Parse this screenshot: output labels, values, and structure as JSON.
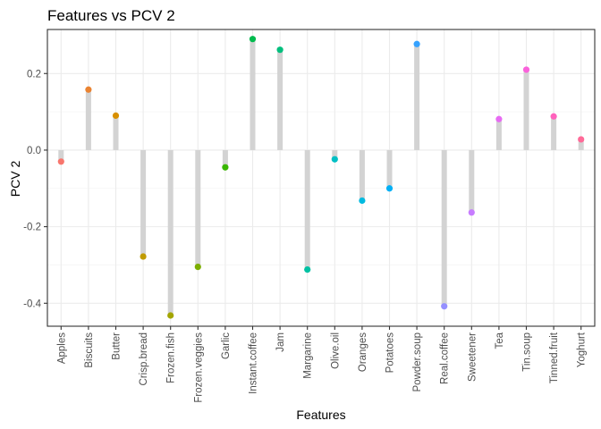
{
  "chart_data": {
    "type": "lollipop",
    "title": "Features vs PCV 2",
    "xlabel": "Features",
    "ylabel": "PCV 2",
    "ylim": [
      -0.46,
      0.315
    ],
    "y_ticks": [
      -0.4,
      -0.2,
      0.0,
      0.2
    ],
    "y_tick_labels": [
      "-0.4",
      "-0.2",
      "0.0",
      "0.2"
    ],
    "grid": true,
    "legend": "none",
    "categories": [
      "Apples",
      "Biscuits",
      "Butter",
      "Crisp.bread",
      "Frozen.fish",
      "Frozen.veggies",
      "Garlic",
      "Instant.coffee",
      "Jam",
      "Margarine",
      "Olive.oil",
      "Oranges",
      "Potatoes",
      "Powder.soup",
      "Real.coffee",
      "Sweetener",
      "Tea",
      "Tin.soup",
      "Tinned.fruit",
      "Yoghurt"
    ],
    "values": [
      -0.03,
      0.158,
      0.09,
      -0.278,
      -0.432,
      -0.305,
      -0.045,
      0.29,
      0.262,
      -0.312,
      -0.024,
      -0.132,
      -0.1,
      0.277,
      -0.408,
      -0.163,
      0.081,
      0.21,
      0.088,
      0.028
    ],
    "colors": [
      "#F8766D",
      "#EA8331",
      "#D89000",
      "#C09B00",
      "#A3A500",
      "#7CAE00",
      "#39B600",
      "#00BB4E",
      "#00BF7D",
      "#00C1A3",
      "#00BFC4",
      "#00BAE0",
      "#00B0F6",
      "#35A2FF",
      "#9590FF",
      "#C77CFF",
      "#E76BF3",
      "#FA62DB",
      "#FF62BC",
      "#FF6A98"
    ],
    "stem_color": "#d3d3d3"
  }
}
